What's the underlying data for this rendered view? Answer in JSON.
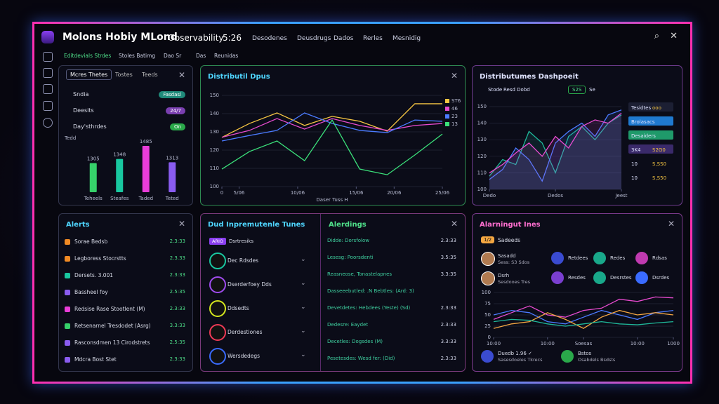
{
  "header": {
    "title": "Molons Hobiy MLond",
    "app": "Observability",
    "time": "5:26",
    "nav": [
      "Desodenes",
      "Deusdrugs",
      "Dados",
      "Rerles",
      "Mesnidig"
    ]
  },
  "subnav": [
    "Editdevials Strdes",
    "Stoles Batimg",
    "Dao Sr",
    "Das",
    "Reunidas"
  ],
  "tasks": {
    "tabs": [
      "Mcres Thetes",
      "Tostes",
      "Teeds"
    ],
    "items": [
      {
        "label": "Sndia",
        "badge": "Fasdasl",
        "color": "#1f8a7a"
      },
      {
        "label": "Deesits",
        "badge": "24/7",
        "color": "#7a3fb0"
      },
      {
        "label": "Day'sthrdes",
        "badge": "On",
        "color": "#2aa84a"
      }
    ],
    "chart": {
      "type": "bar",
      "title": "Tedd",
      "categories": [
        "Teheels",
        "Steafes",
        "Taded",
        "Teted"
      ],
      "values": [
        1305,
        1348,
        1485,
        1313
      ],
      "colors": [
        "#36d06a",
        "#19c8a0",
        "#e93dd8",
        "#8a5cf0"
      ],
      "ylim": [
        1000,
        1500
      ]
    }
  },
  "distribution": {
    "title": "Distributil Dpus",
    "chart": {
      "type": "line",
      "xlabel": "Daser Tuss H",
      "x": [
        0,
        4,
        8,
        12,
        16,
        20,
        24,
        28,
        32
      ],
      "xlim": [
        0,
        32
      ],
      "xticks": [
        {
          "value": 0,
          "label": "0"
        },
        {
          "value": 2.5,
          "label": "5/06"
        },
        {
          "value": 11,
          "label": "10/06"
        },
        {
          "value": 19.5,
          "label": "15/06"
        },
        {
          "value": 25,
          "label": "20/06"
        },
        {
          "value": 32,
          "label": "25/06"
        }
      ],
      "ylim": [
        100,
        150
      ],
      "yticks": [
        100,
        110,
        120,
        130,
        140,
        150
      ],
      "series": [
        {
          "name": "ST6",
          "color": "#f5c542",
          "values": [
            127,
            134.6,
            140.4,
            133.5,
            138.5,
            135.8,
            130.4,
            145.4,
            145.4
          ]
        },
        {
          "name": "46",
          "color": "#e84bd0",
          "values": [
            127,
            130.8,
            137.3,
            131.5,
            137.3,
            133.5,
            130.8,
            133.5,
            134.6
          ]
        },
        {
          "name": "23",
          "color": "#4b7bff",
          "values": [
            125,
            128,
            130.8,
            140.4,
            134.6,
            130.8,
            129.6,
            136.5,
            135.8
          ]
        },
        {
          "name": "13",
          "color": "#3be07a",
          "values": [
            109.6,
            119.2,
            125,
            114.2,
            136.5,
            109.6,
            106.5,
            117.3,
            128.8
          ]
        }
      ]
    }
  },
  "dashboard": {
    "title": "Distributumes Dashpoeit",
    "controls": [
      "Stode",
      "Resd Dobd",
      "S2S",
      "Se"
    ],
    "chart": {
      "type": "area",
      "x": [
        0,
        1,
        2,
        3,
        4,
        5,
        6,
        7,
        8,
        9,
        10
      ],
      "xlim": [
        0,
        10
      ],
      "xticks": [
        {
          "value": 0,
          "label": "Dedo"
        },
        {
          "value": 5,
          "label": "Dedos"
        },
        {
          "value": 10,
          "label": "Jeest"
        }
      ],
      "ylim": [
        100,
        150
      ],
      "yticks": [
        100,
        110,
        120,
        130,
        140,
        150
      ],
      "series": [
        {
          "name": "Tesidtes",
          "color": "#1fb89a",
          "values": [
            108,
            118,
            115,
            135,
            128,
            110,
            132,
            138,
            130,
            140,
            145
          ]
        },
        {
          "name": "Brolasacs",
          "color": "#4b7bff",
          "values": [
            106,
            112,
            125,
            118,
            105,
            128,
            135,
            140,
            132,
            145,
            148
          ]
        },
        {
          "name": "Desaiders",
          "color": "#e84bd0",
          "values": [
            110,
            115,
            122,
            128,
            120,
            132,
            125,
            138,
            142,
            140,
            146
          ]
        }
      ]
    },
    "stats": [
      {
        "label": "Tesidtes",
        "value": "ooo"
      },
      {
        "label": "Brolasacs",
        "value": ""
      },
      {
        "label": "Desaiders",
        "value": ""
      },
      {
        "label": "3K4",
        "value": "S2G0"
      },
      {
        "label": "10",
        "value": "S,SS0"
      },
      {
        "label": "10",
        "value": "S,S50"
      }
    ]
  },
  "alerts": {
    "title": "Alerts",
    "items": [
      {
        "label": "Sorae Bedsb",
        "value": "2.3:33",
        "color": "#f08a24"
      },
      {
        "label": "Legboress Stocrstts",
        "value": "2.3.33",
        "color": "#f08a24"
      },
      {
        "label": "Dersets. 3.001",
        "value": "2.3:33",
        "color": "#19c8a0"
      },
      {
        "label": "Bassheel foy",
        "value": "2.5:35",
        "color": "#8a5cf0"
      },
      {
        "label": "Redsise Rase Stootlent (M)",
        "value": "2.3:33",
        "color": "#e93dd8"
      },
      {
        "label": "Retsenarnel Tresdodet (Asrg)",
        "value": "3.3:33",
        "color": "#36d06a"
      },
      {
        "label": "Rasconsdmen 13 Cirodstrets",
        "value": "2.5:35",
        "color": "#8a5cf0"
      },
      {
        "label": "Mdcra Bost Stet",
        "value": "2.3:33",
        "color": "#8a5cf0"
      }
    ]
  },
  "tunes": {
    "title": "Dud Inpremutenle Tunes",
    "tag": "ARIO",
    "tag_label": "Dsrtresiks",
    "items": [
      {
        "label": "Dec Rdsdes",
        "color": "#19c8a0"
      },
      {
        "label": "Dserderfoey Dds",
        "color": "#a04cf0"
      },
      {
        "label": "Ddsedts",
        "color": "#d6e81e"
      },
      {
        "label": "Derdestiones",
        "color": "#f03a55"
      },
      {
        "label": "Wersdedegs",
        "color": "#3a6bff"
      }
    ]
  },
  "alerdings": {
    "title": "Alerdings",
    "items": [
      {
        "label": "Didde: Dorsfolow",
        "value": "2.3:33"
      },
      {
        "label": "Lesesg: Poorsdenti",
        "value": "3.5:35"
      },
      {
        "label": "Reasneose, Tonastelapnes",
        "value": "3.3:35"
      },
      {
        "label": "Dasseeebutled: .N Bebtles: (Ard: 3)",
        "value": ""
      },
      {
        "label": "Devetdetes: Hebdees (Yeste) (Sd)",
        "value": "2.3:33"
      },
      {
        "label": "Dedesre: Eaydet",
        "value": "2.3:33"
      },
      {
        "label": "Decetles: Dogsdes (M)",
        "value": "3.3:33"
      },
      {
        "label": "Pesetesdes: Wesd fer: (Did)",
        "value": "2.3:33"
      }
    ]
  },
  "ines": {
    "title": "Alarningut Ines",
    "badge": "1/2",
    "subtitle": "Sadeeds",
    "users": [
      {
        "name": "Sasadd",
        "detail": "Sess: S3 Sdos"
      },
      {
        "name": "Dsrh",
        "detail": "Sesdooes Tres"
      }
    ],
    "icons": [
      {
        "label": "Retdees",
        "color": "#3a4bd0"
      },
      {
        "label": "Redes",
        "color": "#19a88a"
      },
      {
        "label": "Rdsas",
        "color": "#c03ab0"
      },
      {
        "label": "Resdes",
        "color": "#7a3fd0"
      },
      {
        "label": "Desrstes",
        "color": "#19a88a"
      },
      {
        "label": "Dsrdes",
        "color": "#3a6bff"
      }
    ],
    "chart": {
      "type": "line",
      "x": [
        0,
        1,
        2,
        3,
        4,
        5,
        6,
        7,
        8,
        9,
        10
      ],
      "xlim": [
        0,
        10
      ],
      "xticks": [
        {
          "value": 0,
          "label": "10:00"
        },
        {
          "value": 3,
          "label": "10:00"
        },
        {
          "value": 5,
          "label": "Soesas"
        },
        {
          "value": 8,
          "label": "10:00"
        },
        {
          "value": 10,
          "label": "1000"
        }
      ],
      "ylim": [
        0,
        100
      ],
      "yticks": [
        0,
        25,
        50,
        75,
        100
      ],
      "series": [
        {
          "name": "Pink",
          "color": "#e84bd0",
          "values": [
            40,
            55,
            70,
            50,
            45,
            60,
            65,
            85,
            80,
            90,
            88
          ]
        },
        {
          "name": "Blue",
          "color": "#4b7bff",
          "values": [
            50,
            60,
            55,
            35,
            30,
            45,
            60,
            50,
            40,
            55,
            60
          ]
        },
        {
          "name": "Yellow",
          "color": "#f5a742",
          "values": [
            20,
            30,
            35,
            55,
            40,
            20,
            45,
            60,
            50,
            55,
            50
          ]
        },
        {
          "name": "Teal",
          "color": "#1fb89a",
          "values": [
            35,
            40,
            38,
            30,
            25,
            30,
            35,
            30,
            28,
            32,
            35
          ]
        }
      ]
    },
    "footer": [
      {
        "name": "Duedb 1.96 ✓",
        "detail": "Sasesdoeles Tkrecs"
      },
      {
        "name": "Bstos",
        "detail": "Osabdels Bsdsts"
      }
    ]
  }
}
